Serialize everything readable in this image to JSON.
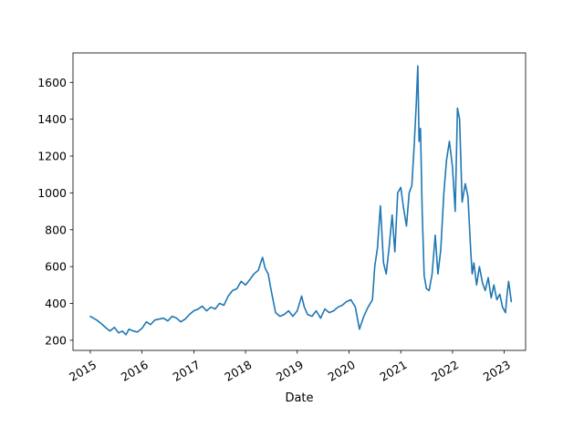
{
  "chart_data": {
    "type": "line",
    "title": "",
    "xlabel": "Date",
    "ylabel": "",
    "x_tick_labels": [
      "2015",
      "2016",
      "2017",
      "2018",
      "2019",
      "2020",
      "2021",
      "2022",
      "2023"
    ],
    "y_tick_labels": [
      "200",
      "400",
      "600",
      "800",
      "1000",
      "1200",
      "1400",
      "1600"
    ],
    "y_ticks": [
      200,
      400,
      600,
      800,
      1000,
      1200,
      1400,
      1600
    ],
    "xlim": [
      "2014-09-01",
      "2023-06-01"
    ],
    "ylim": [
      145,
      1760
    ],
    "grid": false,
    "series": [
      {
        "color": "#1f77b4",
        "x": [
          "2015-01-01",
          "2015-02-15",
          "2015-03-20",
          "2015-04-25",
          "2015-05-20",
          "2015-06-20",
          "2015-07-20",
          "2015-08-15",
          "2015-09-10",
          "2015-10-01",
          "2015-11-01",
          "2015-12-01",
          "2016-01-01",
          "2016-02-01",
          "2016-03-01",
          "2016-04-01",
          "2016-05-01",
          "2016-06-01",
          "2016-07-01",
          "2016-08-01",
          "2016-09-01",
          "2016-10-01",
          "2016-11-01",
          "2016-12-01",
          "2017-01-01",
          "2017-02-01",
          "2017-03-01",
          "2017-04-01",
          "2017-05-01",
          "2017-06-01",
          "2017-07-01",
          "2017-08-01",
          "2017-09-01",
          "2017-10-01",
          "2017-11-01",
          "2017-12-01",
          "2018-01-01",
          "2018-02-01",
          "2018-03-01",
          "2018-04-01",
          "2018-05-01",
          "2018-05-20",
          "2018-06-10",
          "2018-07-01",
          "2018-08-01",
          "2018-09-01",
          "2018-10-01",
          "2018-11-01",
          "2018-12-01",
          "2019-01-01",
          "2019-02-01",
          "2019-02-20",
          "2019-03-15",
          "2019-04-15",
          "2019-05-15",
          "2019-06-15",
          "2019-07-15",
          "2019-08-15",
          "2019-09-15",
          "2019-10-15",
          "2019-11-15",
          "2019-12-15",
          "2020-01-15",
          "2020-02-15",
          "2020-03-15",
          "2020-04-15",
          "2020-05-15",
          "2020-06-15",
          "2020-07-01",
          "2020-07-20",
          "2020-08-10",
          "2020-09-01",
          "2020-09-20",
          "2020-10-10",
          "2020-11-01",
          "2020-11-20",
          "2020-12-10",
          "2021-01-01",
          "2021-01-20",
          "2021-02-10",
          "2021-03-01",
          "2021-03-20",
          "2021-04-05",
          "2021-04-20",
          "2021-05-01",
          "2021-05-10",
          "2021-05-20",
          "2021-06-01",
          "2021-06-15",
          "2021-07-01",
          "2021-07-20",
          "2021-08-10",
          "2021-09-01",
          "2021-09-20",
          "2021-10-10",
          "2021-11-01",
          "2021-11-20",
          "2021-12-10",
          "2022-01-01",
          "2022-01-20",
          "2022-02-05",
          "2022-02-20",
          "2022-03-10",
          "2022-04-01",
          "2022-04-20",
          "2022-05-10",
          "2022-05-20",
          "2022-06-01",
          "2022-06-20",
          "2022-07-10",
          "2022-08-01",
          "2022-08-20",
          "2022-09-10",
          "2022-10-01",
          "2022-10-20",
          "2022-11-10",
          "2022-12-01",
          "2022-12-20",
          "2023-01-10",
          "2023-01-20",
          "2023-02-01",
          "2023-02-10",
          "2023-02-20"
        ],
        "values": [
          330,
          310,
          290,
          265,
          250,
          270,
          240,
          250,
          230,
          260,
          250,
          245,
          265,
          300,
          285,
          310,
          315,
          320,
          305,
          330,
          320,
          300,
          315,
          340,
          360,
          370,
          385,
          360,
          380,
          370,
          400,
          390,
          440,
          470,
          480,
          520,
          500,
          530,
          560,
          580,
          650,
          590,
          560,
          470,
          350,
          330,
          340,
          360,
          330,
          360,
          440,
          380,
          340,
          330,
          360,
          320,
          370,
          350,
          360,
          380,
          390,
          410,
          420,
          380,
          260,
          330,
          380,
          420,
          600,
          700,
          930,
          620,
          560,
          700,
          880,
          680,
          1000,
          1030,
          920,
          820,
          1000,
          1040,
          1250,
          1480,
          1690,
          1280,
          1350,
          900,
          550,
          480,
          470,
          560,
          770,
          560,
          690,
          1000,
          1180,
          1280,
          1140,
          900,
          1460,
          1400,
          950,
          1050,
          980,
          680,
          560,
          620,
          500,
          600,
          510,
          470,
          540,
          430,
          500,
          420,
          450,
          380,
          350,
          440,
          520,
          470,
          410
        ]
      }
    ]
  }
}
